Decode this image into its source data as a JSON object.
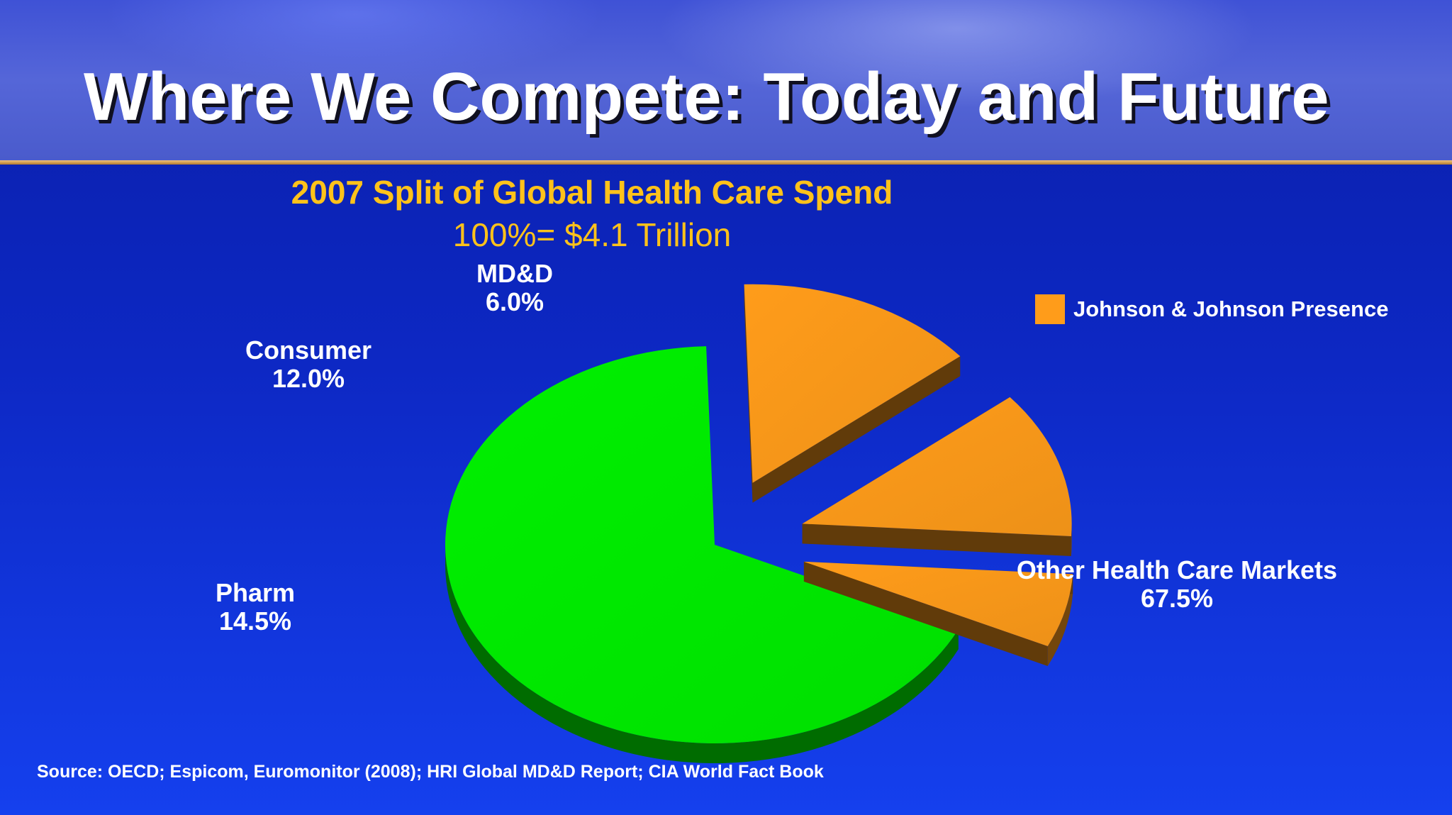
{
  "slide": {
    "title": "Where We Compete: Today and Future",
    "source": "Source: OECD; Espicom, Euromonitor (2008); HRI Global MD&D Report; CIA World Fact Book"
  },
  "chart_data": {
    "type": "pie",
    "title": "2007 Split of Global Health Care Spend",
    "subtitle": "100%= $4.1 Trillion",
    "legend": {
      "placement": "top-right",
      "entries": [
        {
          "label": "Johnson & Johnson Presence",
          "color": "#ff9c1a"
        }
      ]
    },
    "slices": [
      {
        "label": "Other Health Care Markets",
        "value": 67.5,
        "display": "67.5%",
        "color": "#00f000",
        "exploded": false
      },
      {
        "label": "Pharm",
        "value": 14.5,
        "display": "14.5%",
        "color": "#ff9c1a",
        "exploded": true
      },
      {
        "label": "Consumer",
        "value": 12.0,
        "display": "12.0%",
        "color": "#ff9c1a",
        "exploded": true
      },
      {
        "label": "MD&D",
        "value": 6.0,
        "display": "6.0%",
        "color": "#ff9c1a",
        "exploded": true
      }
    ]
  }
}
